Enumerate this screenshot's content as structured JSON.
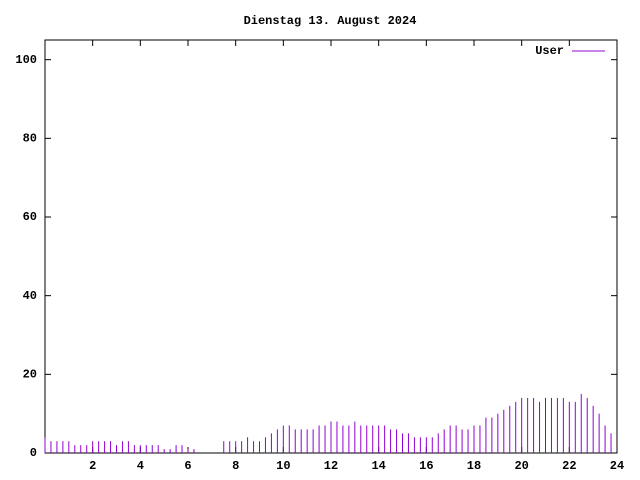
{
  "chart_data": {
    "type": "impulses",
    "title": "Dienstag 13. August 2024",
    "x": [
      0,
      0.25,
      0.5,
      0.75,
      1,
      1.25,
      1.5,
      1.75,
      2,
      2.25,
      2.5,
      2.75,
      3,
      3.25,
      3.5,
      3.75,
      4,
      4.25,
      4.5,
      4.75,
      5,
      5.25,
      5.5,
      5.75,
      6,
      6.25,
      6.5,
      6.75,
      7,
      7.25,
      7.5,
      7.75,
      8,
      8.25,
      8.5,
      8.75,
      9,
      9.25,
      9.5,
      9.75,
      10,
      10.25,
      10.5,
      10.75,
      11,
      11.25,
      11.5,
      11.75,
      12,
      12.25,
      12.5,
      12.75,
      13,
      13.25,
      13.5,
      13.75,
      14,
      14.25,
      14.5,
      14.75,
      15,
      15.25,
      15.5,
      15.75,
      16,
      16.25,
      16.5,
      16.75,
      17,
      17.25,
      17.5,
      17.75,
      18,
      18.25,
      18.5,
      18.75,
      19,
      19.25,
      19.5,
      19.75,
      20,
      20.25,
      20.5,
      20.75,
      21,
      21.25,
      21.5,
      21.75,
      22,
      22.25,
      22.5,
      22.75,
      23,
      23.25,
      23.5,
      23.75
    ],
    "series": [
      {
        "name": "User",
        "color": "#9400d3",
        "values": [
          4,
          3,
          3,
          3,
          3,
          2,
          2,
          2,
          3,
          3,
          3,
          3,
          2,
          3,
          3,
          2,
          2,
          2,
          2,
          2,
          1,
          1,
          2,
          2,
          1,
          1,
          0,
          0,
          0,
          0,
          3,
          3,
          3,
          3,
          4,
          3,
          3,
          4,
          5,
          6,
          7,
          7,
          6,
          6,
          6,
          6,
          7,
          7,
          8,
          8,
          7,
          7,
          8,
          7,
          7,
          7,
          7,
          7,
          6,
          6,
          5,
          5,
          4,
          4,
          4,
          4,
          5,
          6,
          7,
          7,
          6,
          6,
          7,
          7,
          9,
          9,
          10,
          11,
          12,
          13,
          14,
          14,
          14,
          13,
          14,
          14,
          14,
          14,
          13,
          13,
          15,
          14,
          12,
          10,
          7,
          5
        ]
      }
    ],
    "xlim": [
      0,
      24
    ],
    "xticks": [
      2,
      4,
      6,
      8,
      10,
      12,
      14,
      16,
      18,
      20,
      22,
      24
    ],
    "ylim": [
      0,
      105
    ],
    "yticks": [
      0,
      20,
      40,
      60,
      80,
      100
    ],
    "legend": "top-right"
  }
}
